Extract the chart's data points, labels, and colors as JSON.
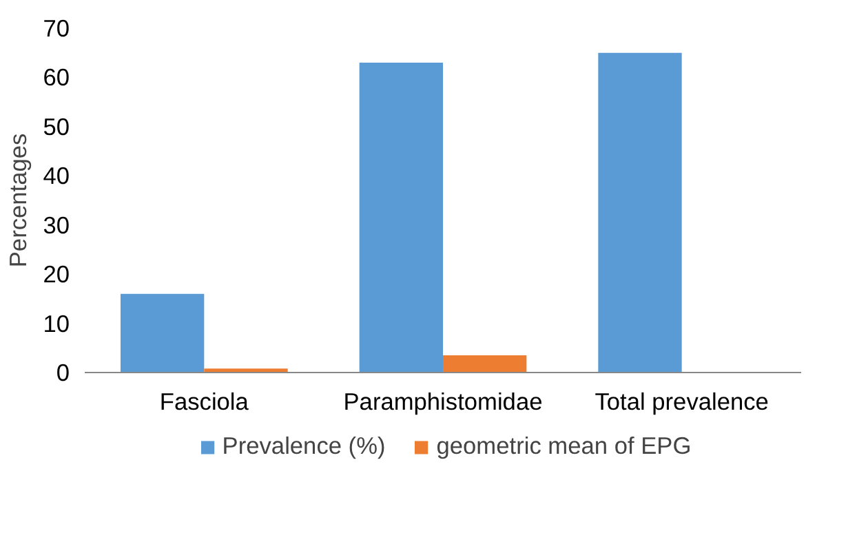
{
  "chart_data": {
    "type": "bar",
    "ylabel": "Percentages",
    "categories": [
      "Fasciola",
      "Paramphistomidae",
      "Total prevalence"
    ],
    "series": [
      {
        "name": "Prevalence (%)",
        "color": "#5b9bd5",
        "values": [
          16,
          63,
          65
        ]
      },
      {
        "name": "geometric mean of EPG",
        "color": "#ed7d31",
        "values": [
          0.8,
          3.5,
          null
        ]
      }
    ],
    "ylim": [
      0,
      70
    ],
    "yticks": [
      0,
      10,
      20,
      30,
      40,
      50,
      60,
      70
    ],
    "grid": false,
    "legend": "bottom"
  }
}
